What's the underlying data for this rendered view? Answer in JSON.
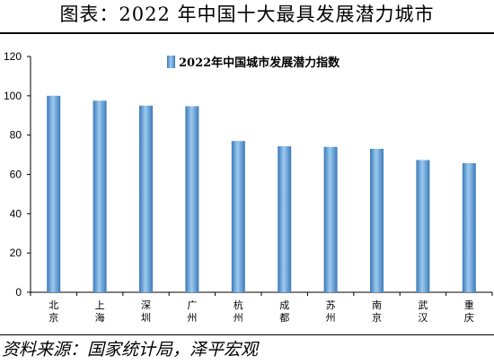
{
  "header": {
    "title": "图表：2022 年中国十大最具发展潜力城市"
  },
  "footer": {
    "source": "资料来源：国家统计局，泽平宏观"
  },
  "colors": {
    "bar": "#4a88c4",
    "bar_light": "#8ec0ea",
    "axis": "#000000"
  },
  "chart_data": {
    "type": "bar",
    "categories": [
      "北京",
      "上海",
      "深圳",
      "广州",
      "杭州",
      "成都",
      "苏州",
      "南京",
      "武汉",
      "重庆"
    ],
    "series": [
      {
        "name": "2022年中国城市发展潜力指数",
        "values": [
          100,
          97.5,
          95,
          94.7,
          77,
          74.3,
          74,
          73,
          67.3,
          65.7
        ]
      }
    ],
    "ylim": [
      0,
      120
    ],
    "yticks": [
      0,
      20,
      40,
      60,
      80,
      100,
      120
    ],
    "legend": "top-center",
    "grid": false
  }
}
